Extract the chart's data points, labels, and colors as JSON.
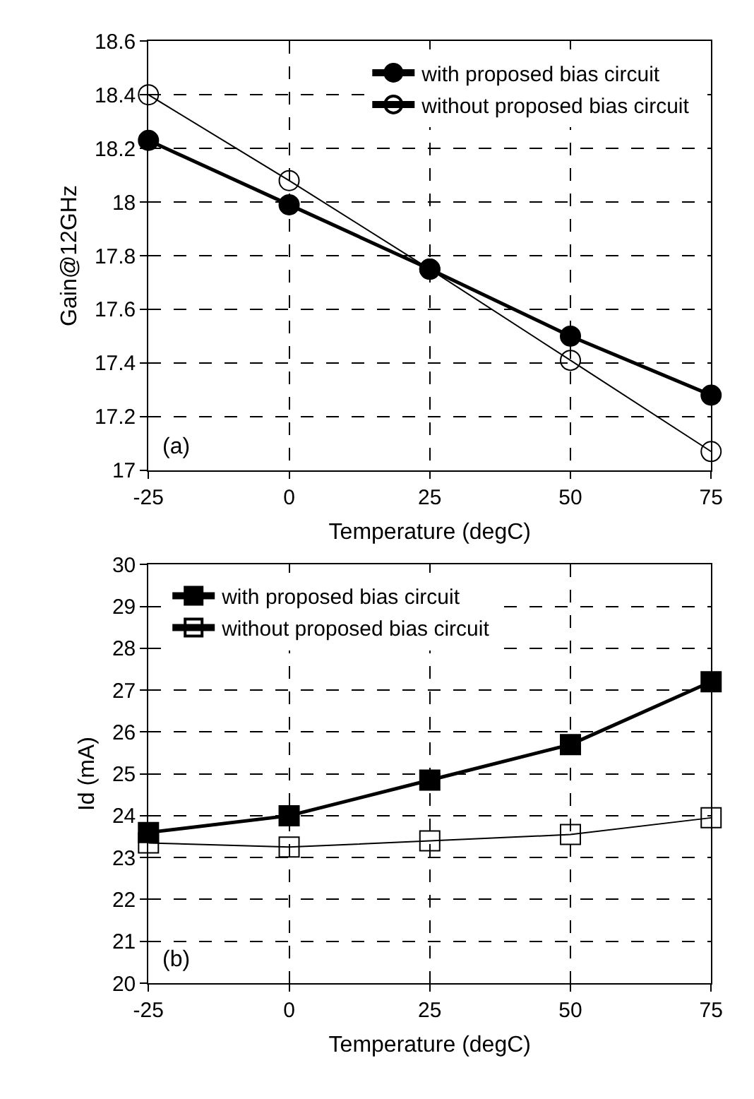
{
  "chart_data": [
    {
      "type": "line",
      "xlabel": "Temperature (degC)",
      "ylabel": "Gain@12GHz",
      "x": [
        -25,
        0,
        25,
        50,
        75
      ],
      "series": [
        {
          "name": "with proposed bias circuit",
          "color": "#000000",
          "values": [
            18.23,
            17.99,
            17.75,
            17.5,
            17.28
          ]
        },
        {
          "name": "without proposed bias circuit",
          "color": "#000000",
          "values": [
            18.4,
            18.08,
            17.75,
            17.41,
            17.07
          ]
        }
      ],
      "xlim": [
        -25,
        75
      ],
      "xticks": [
        -25,
        0,
        25,
        50,
        75
      ],
      "ylim": [
        17,
        18.6
      ],
      "yticks": [
        17,
        17.2,
        17.4,
        17.6,
        17.8,
        18,
        18.2,
        18.4,
        18.6
      ],
      "grid": true,
      "line_style": "solid",
      "marker": "circle",
      "legend": "top right",
      "annotations": [
        "(a)"
      ]
    },
    {
      "type": "line",
      "xlabel": "Temperature (degC)",
      "ylabel": "Id (mA)",
      "x": [
        -25,
        0,
        25,
        50,
        75
      ],
      "series": [
        {
          "name": "with proposed bias circuit",
          "color": "#000000",
          "values": [
            23.6,
            24.0,
            24.85,
            25.7,
            27.2
          ]
        },
        {
          "name": "without proposed bias circuit",
          "color": "#000000",
          "values": [
            23.35,
            23.25,
            23.4,
            23.55,
            23.95
          ]
        }
      ],
      "xlim": [
        -25,
        75
      ],
      "xticks": [
        -25,
        0,
        25,
        50,
        75
      ],
      "ylim": [
        20,
        30
      ],
      "yticks": [
        20,
        21,
        22,
        23,
        24,
        25,
        26,
        27,
        28,
        29,
        30
      ],
      "grid": true,
      "line_style": "solid",
      "marker": "square",
      "legend": "top left",
      "annotations": [
        "(b)"
      ]
    }
  ]
}
